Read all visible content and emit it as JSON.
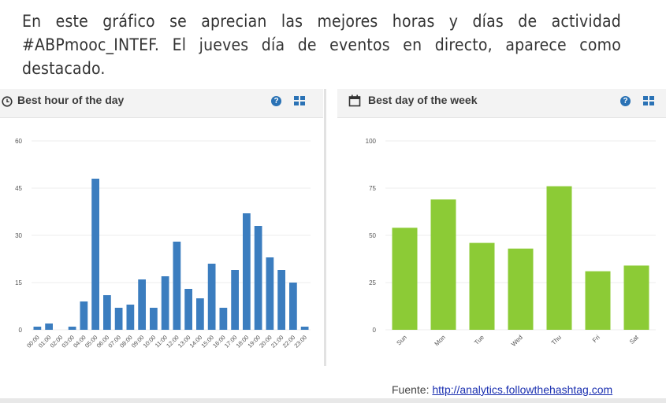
{
  "intro_text": "En este gráfico se aprecian las mejores horas y días de actividad #ABPmooc_INTEF. El jueves día de eventos en directo, aparece como destacado.",
  "source": {
    "label": "Fuente:",
    "link": "http://analytics.followthehashtag.com"
  },
  "panels": {
    "hour": {
      "title": "Best hour of the day",
      "icon": "clock-icon",
      "help": "?"
    },
    "day": {
      "title": "Best day of the week",
      "icon": "calendar-icon",
      "help": "?"
    }
  },
  "colors": {
    "hour_bar": "#3b7dbf",
    "day_bar": "#8ccb36",
    "icon_blue": "#2a72b5"
  },
  "chart_data": [
    {
      "type": "bar",
      "title": "Best hour of the day",
      "categories": [
        "00:00",
        "01:00",
        "02:00",
        "03:00",
        "04:00",
        "05:00",
        "06:00",
        "07:00",
        "08:00",
        "09:00",
        "10:00",
        "11:00",
        "12:00",
        "13:00",
        "14:00",
        "15:00",
        "16:00",
        "17:00",
        "18:00",
        "19:00",
        "20:00",
        "21:00",
        "22:00",
        "23:00"
      ],
      "values": [
        1,
        2,
        0,
        1,
        9,
        48,
        11,
        7,
        8,
        16,
        7,
        17,
        28,
        13,
        10,
        21,
        7,
        19,
        37,
        33,
        23,
        19,
        15,
        1
      ],
      "ylim": [
        0,
        60
      ],
      "yticks": [
        0,
        15,
        30,
        45,
        60
      ],
      "grid": true
    },
    {
      "type": "bar",
      "title": "Best day of the week",
      "categories": [
        "Sun",
        "Mon",
        "Tue",
        "Wed",
        "Thu",
        "Fri",
        "Sat"
      ],
      "values": [
        54,
        69,
        46,
        43,
        76,
        31,
        34
      ],
      "ylim": [
        0,
        100
      ],
      "yticks": [
        0,
        25,
        50,
        75,
        100
      ],
      "grid": true
    }
  ]
}
